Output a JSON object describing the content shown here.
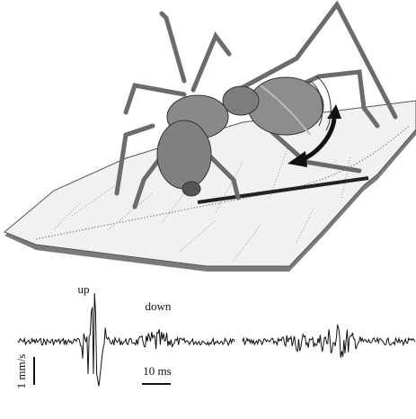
{
  "labels": {
    "up": "up",
    "down": "down",
    "velocity_scale": "1 mm/s",
    "time_scale": "10 ms"
  }
}
